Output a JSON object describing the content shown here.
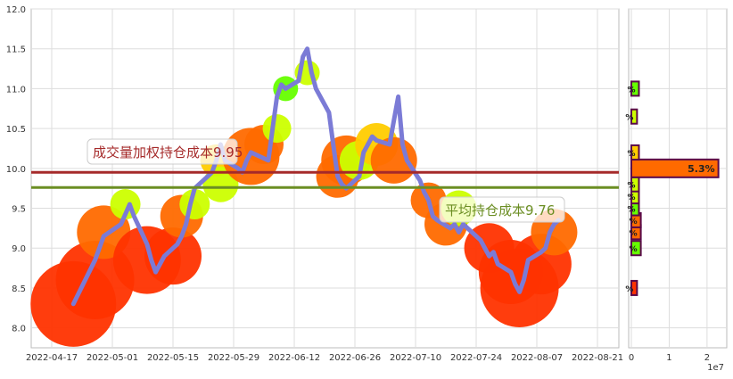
{
  "chart_data": [
    {
      "type": "line",
      "title": "",
      "xlabel": "",
      "ylabel": "",
      "ylim": [
        7.75,
        12.0
      ],
      "grid": true,
      "x_ticks": [
        "2022-04-17",
        "2022-05-01",
        "2022-05-15",
        "2022-05-29",
        "2022-06-12",
        "2022-06-26",
        "2022-07-10",
        "2022-07-24",
        "2022-08-07",
        "2022-08-21"
      ],
      "y_ticks": [
        "8.0",
        "8.5",
        "9.0",
        "9.5",
        "10.0",
        "10.5",
        "11.0",
        "11.5",
        "12.0"
      ],
      "series": [
        {
          "color": "#7b7bd6",
          "points": [
            [
              "2022-04-22",
              8.3
            ],
            [
              "2022-04-27",
              8.85
            ],
            [
              "2022-04-29",
              9.15
            ],
            [
              "2022-05-03",
              9.3
            ],
            [
              "2022-05-05",
              9.55
            ],
            [
              "2022-05-06",
              9.4
            ],
            [
              "2022-05-09",
              9.05
            ],
            [
              "2022-05-10",
              8.85
            ],
            [
              "2022-05-11",
              8.7
            ],
            [
              "2022-05-13",
              8.9
            ],
            [
              "2022-05-16",
              9.05
            ],
            [
              "2022-05-17",
              9.15
            ],
            [
              "2022-05-18",
              9.3
            ],
            [
              "2022-05-19",
              9.55
            ],
            [
              "2022-05-20",
              9.75
            ],
            [
              "2022-05-23",
              9.9
            ],
            [
              "2022-05-24",
              9.95
            ],
            [
              "2022-05-25",
              10.1
            ],
            [
              "2022-05-26",
              10.3
            ],
            [
              "2022-05-27",
              10.1
            ],
            [
              "2022-05-30",
              10.0
            ],
            [
              "2022-05-31",
              9.95
            ],
            [
              "2022-06-01",
              10.1
            ],
            [
              "2022-06-02",
              10.2
            ],
            [
              "2022-06-06",
              10.1
            ],
            [
              "2022-06-07",
              10.5
            ],
            [
              "2022-06-08",
              10.9
            ],
            [
              "2022-06-09",
              11.05
            ],
            [
              "2022-06-10",
              11.0
            ],
            [
              "2022-06-13",
              11.1
            ],
            [
              "2022-06-14",
              11.4
            ],
            [
              "2022-06-15",
              11.5
            ],
            [
              "2022-06-16",
              11.2
            ],
            [
              "2022-06-17",
              11.0
            ],
            [
              "2022-06-20",
              10.7
            ],
            [
              "2022-06-21",
              10.3
            ],
            [
              "2022-06-22",
              9.9
            ],
            [
              "2022-06-23",
              9.8
            ],
            [
              "2022-06-24",
              9.75
            ],
            [
              "2022-06-27",
              9.9
            ],
            [
              "2022-06-28",
              10.2
            ],
            [
              "2022-06-29",
              10.3
            ],
            [
              "2022-06-30",
              10.4
            ],
            [
              "2022-07-01",
              10.35
            ],
            [
              "2022-07-04",
              10.3
            ],
            [
              "2022-07-05",
              10.6
            ],
            [
              "2022-07-06",
              10.9
            ],
            [
              "2022-07-07",
              10.3
            ],
            [
              "2022-07-08",
              10.1
            ],
            [
              "2022-07-11",
              9.85
            ],
            [
              "2022-07-12",
              9.7
            ],
            [
              "2022-07-13",
              9.6
            ],
            [
              "2022-07-14",
              9.4
            ],
            [
              "2022-07-15",
              9.35
            ],
            [
              "2022-07-18",
              9.25
            ],
            [
              "2022-07-19",
              9.3
            ],
            [
              "2022-07-20",
              9.2
            ],
            [
              "2022-07-21",
              9.3
            ],
            [
              "2022-07-22",
              9.25
            ],
            [
              "2022-07-25",
              9.1
            ],
            [
              "2022-07-26",
              9.0
            ],
            [
              "2022-07-27",
              8.9
            ],
            [
              "2022-07-28",
              8.95
            ],
            [
              "2022-07-29",
              8.8
            ],
            [
              "2022-08-01",
              8.7
            ],
            [
              "2022-08-02",
              8.55
            ],
            [
              "2022-08-03",
              8.45
            ],
            [
              "2022-08-04",
              8.6
            ],
            [
              "2022-08-05",
              8.85
            ],
            [
              "2022-08-08",
              8.95
            ],
            [
              "2022-08-09",
              9.0
            ],
            [
              "2022-08-10",
              9.2
            ],
            [
              "2022-08-11",
              9.3
            ],
            [
              "2022-08-12",
              9.35
            ]
          ]
        }
      ],
      "bubbles": [
        {
          "x": "2022-04-22",
          "y": 8.3,
          "size": 48,
          "color": "#ff3300"
        },
        {
          "x": "2022-04-27",
          "y": 8.6,
          "size": 44,
          "color": "#ff3300"
        },
        {
          "x": "2022-04-29",
          "y": 9.2,
          "size": 30,
          "color": "#ff6a00"
        },
        {
          "x": "2022-05-04",
          "y": 9.55,
          "size": 17,
          "color": "#ccff00"
        },
        {
          "x": "2022-05-09",
          "y": 8.85,
          "size": 38,
          "color": "#ff3300"
        },
        {
          "x": "2022-05-15",
          "y": 8.9,
          "size": 32,
          "color": "#ff3300"
        },
        {
          "x": "2022-05-17",
          "y": 9.4,
          "size": 24,
          "color": "#ff6a00"
        },
        {
          "x": "2022-05-20",
          "y": 9.55,
          "size": 17,
          "color": "#ccff00"
        },
        {
          "x": "2022-05-25",
          "y": 10.1,
          "size": 18,
          "color": "#ffcc00"
        },
        {
          "x": "2022-05-26",
          "y": 9.8,
          "size": 20,
          "color": "#ccff00"
        },
        {
          "x": "2022-06-02",
          "y": 10.15,
          "size": 32,
          "color": "#ff6a00"
        },
        {
          "x": "2022-06-05",
          "y": 10.3,
          "size": 22,
          "color": "#ff6a00"
        },
        {
          "x": "2022-06-08",
          "y": 10.5,
          "size": 16,
          "color": "#ccff00"
        },
        {
          "x": "2022-06-10",
          "y": 11.0,
          "size": 14,
          "color": "#66ff00"
        },
        {
          "x": "2022-06-15",
          "y": 11.2,
          "size": 14,
          "color": "#ccff00"
        },
        {
          "x": "2022-06-22",
          "y": 9.9,
          "size": 24,
          "color": "#ff6a00"
        },
        {
          "x": "2022-06-24",
          "y": 10.1,
          "size": 28,
          "color": "#ff6a00"
        },
        {
          "x": "2022-06-27",
          "y": 10.1,
          "size": 22,
          "color": "#ccff00"
        },
        {
          "x": "2022-07-01",
          "y": 10.3,
          "size": 24,
          "color": "#ffcc00"
        },
        {
          "x": "2022-07-05",
          "y": 10.1,
          "size": 26,
          "color": "#ff6a00"
        },
        {
          "x": "2022-07-13",
          "y": 9.6,
          "size": 20,
          "color": "#ff6a00"
        },
        {
          "x": "2022-07-17",
          "y": 9.3,
          "size": 24,
          "color": "#ff6a00"
        },
        {
          "x": "2022-07-20",
          "y": 9.5,
          "size": 20,
          "color": "#ccff00"
        },
        {
          "x": "2022-07-27",
          "y": 9.0,
          "size": 28,
          "color": "#ff3300"
        },
        {
          "x": "2022-08-01",
          "y": 8.7,
          "size": 36,
          "color": "#ff3300"
        },
        {
          "x": "2022-08-03",
          "y": 8.5,
          "size": 44,
          "color": "#ff3300"
        },
        {
          "x": "2022-08-08",
          "y": 8.8,
          "size": 34,
          "color": "#ff3300"
        },
        {
          "x": "2022-08-11",
          "y": 9.2,
          "size": 26,
          "color": "#ff6a00"
        }
      ],
      "reference_lines": [
        {
          "y": 9.95,
          "color": "#a52a2a",
          "label": "成交量加权持仓成本9.95",
          "label_color": "#a52a2a"
        },
        {
          "y": 9.76,
          "color": "#6b8e23",
          "label": "平均持仓成本9.76",
          "label_color": "#6b8e23"
        }
      ]
    },
    {
      "type": "bar",
      "orientation": "horizontal",
      "categories": [
        8.5,
        9.0,
        9.2,
        9.35,
        9.5,
        9.65,
        9.8,
        10.0,
        10.2,
        10.65,
        11.0
      ],
      "values": [
        0.15,
        0.25,
        0.25,
        0.25,
        0.2,
        0.2,
        0.2,
        2.3,
        0.2,
        0.15,
        0.2
      ],
      "colors": [
        "#ff3300",
        "#66ff00",
        "#ff6a00",
        "#ff6a00",
        "#66ff00",
        "#ccff00",
        "#ccff00",
        "#ff6a00",
        "#ffcc00",
        "#ccff00",
        "#66ff00"
      ],
      "labels": [
        "%",
        "%",
        "%",
        "%",
        "%",
        "%",
        "%",
        "5.3%",
        "%",
        "%",
        "%"
      ],
      "xlim": [
        0,
        2.45
      ],
      "x_ticks": [
        "0",
        "1",
        "2"
      ],
      "x_offset_label": "1e7"
    }
  ]
}
